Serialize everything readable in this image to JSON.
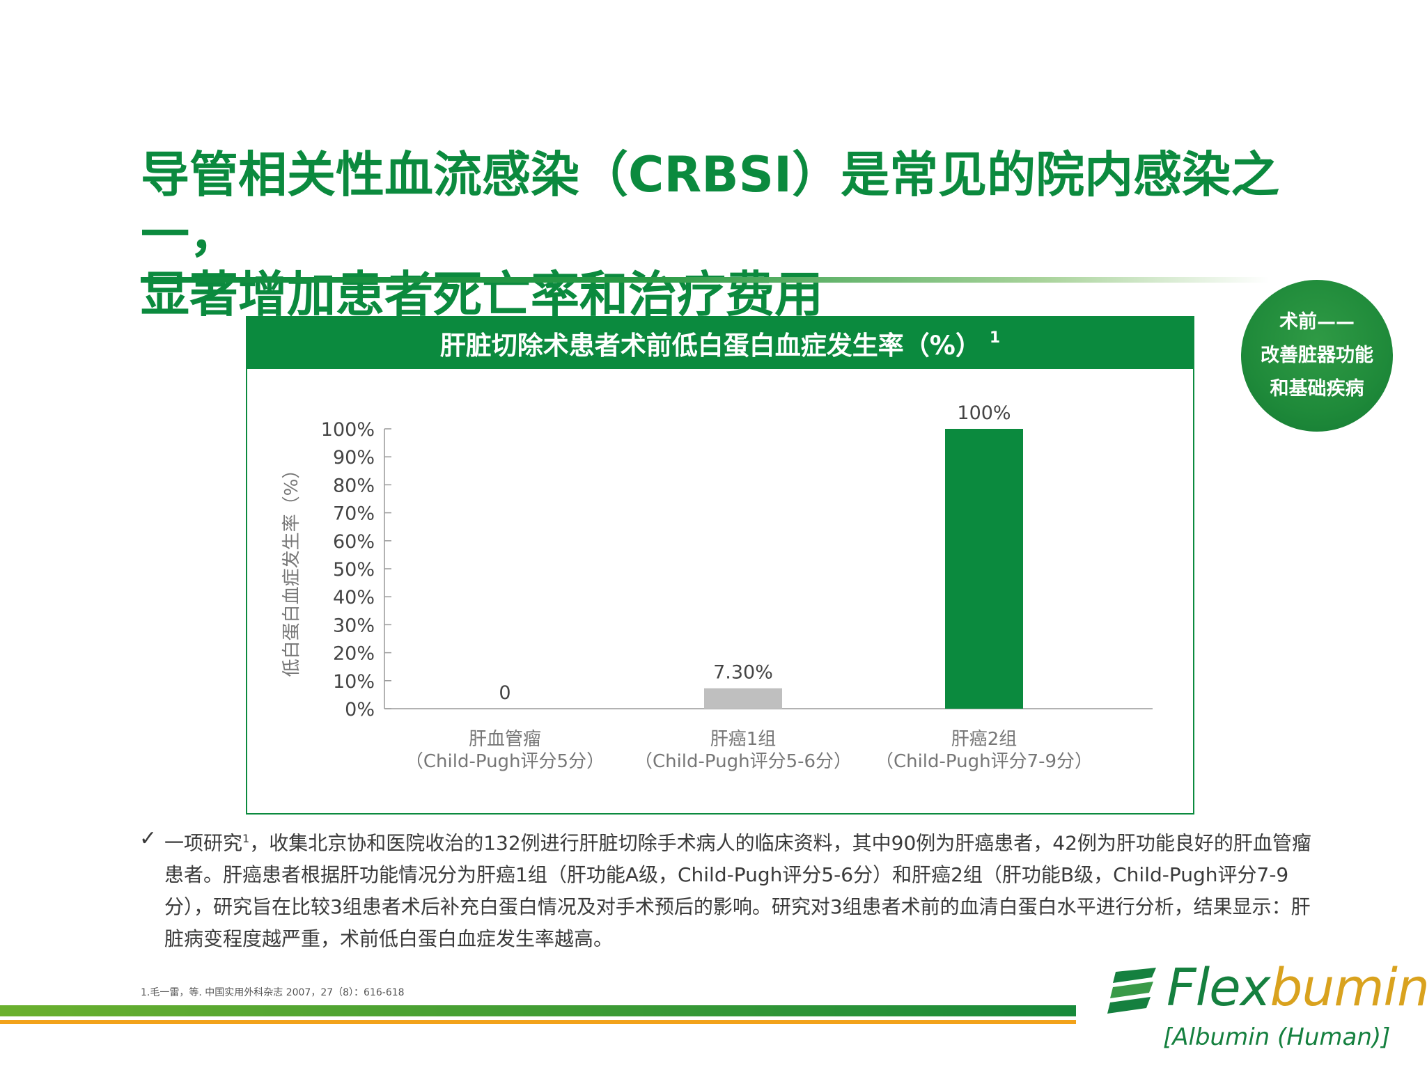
{
  "title_line1": "导管相关性血流感染（CRBSI）是常见的院内感染之一，",
  "title_line2": "显著增加患者死亡率和治疗费用",
  "badge": [
    "术前——",
    "改善脏器功能",
    "和基础疾病"
  ],
  "chart_data": {
    "type": "bar",
    "title": "肝脏切除术患者术前低白蛋白血症发生率（%）",
    "title_superscript": "1",
    "ylabel": "低白蛋白血症发生率（%）",
    "ylim": [
      0,
      100
    ],
    "yticks": [
      "0%",
      "10%",
      "20%",
      "30%",
      "40%",
      "50%",
      "60%",
      "70%",
      "80%",
      "90%",
      "100%"
    ],
    "categories": [
      {
        "name": "肝血管瘤",
        "sub": "（Child-Pugh评分5分）"
      },
      {
        "name": "肝癌1组",
        "sub": "（Child-Pugh评分5-6分）"
      },
      {
        "name": "肝癌2组",
        "sub": "（Child-Pugh评分7-9分）"
      }
    ],
    "values": [
      0,
      7.3,
      100
    ],
    "value_labels": [
      "0",
      "7.30%",
      "100%"
    ],
    "colors": [
      "#0b8a3e",
      "#bfbfbf",
      "#0b8a3e"
    ],
    "grid": false,
    "legend": "none"
  },
  "body": {
    "check": "✓",
    "lead": "一项研究",
    "sup": "1",
    "rest": "，收集北京协和医院收治的132例进行肝脏切除手术病人的临床资料，其中90例为肝癌患者，42例为肝功能良好的肝血管瘤患者。肝癌患者根据肝功能情况分为肝癌1组（肝功能A级，Child-Pugh评分5-6分）和肝癌2组（肝功能B级，Child-Pugh评分7-9分），研究旨在比较3组患者术后补充白蛋白情况及对手术预后的影响。研究对3组患者术前的血清白蛋白水平进行分析，结果显示：肝脏病变程度越严重，术前低白蛋白血症发生率越高。"
  },
  "reference": "1.毛一雷，等. 中国实用外科杂志 2007，27（8）：616-618",
  "logo": {
    "word_a": "Flex",
    "word_b": "bumin",
    "sub": "[Albumin (Human)]"
  }
}
